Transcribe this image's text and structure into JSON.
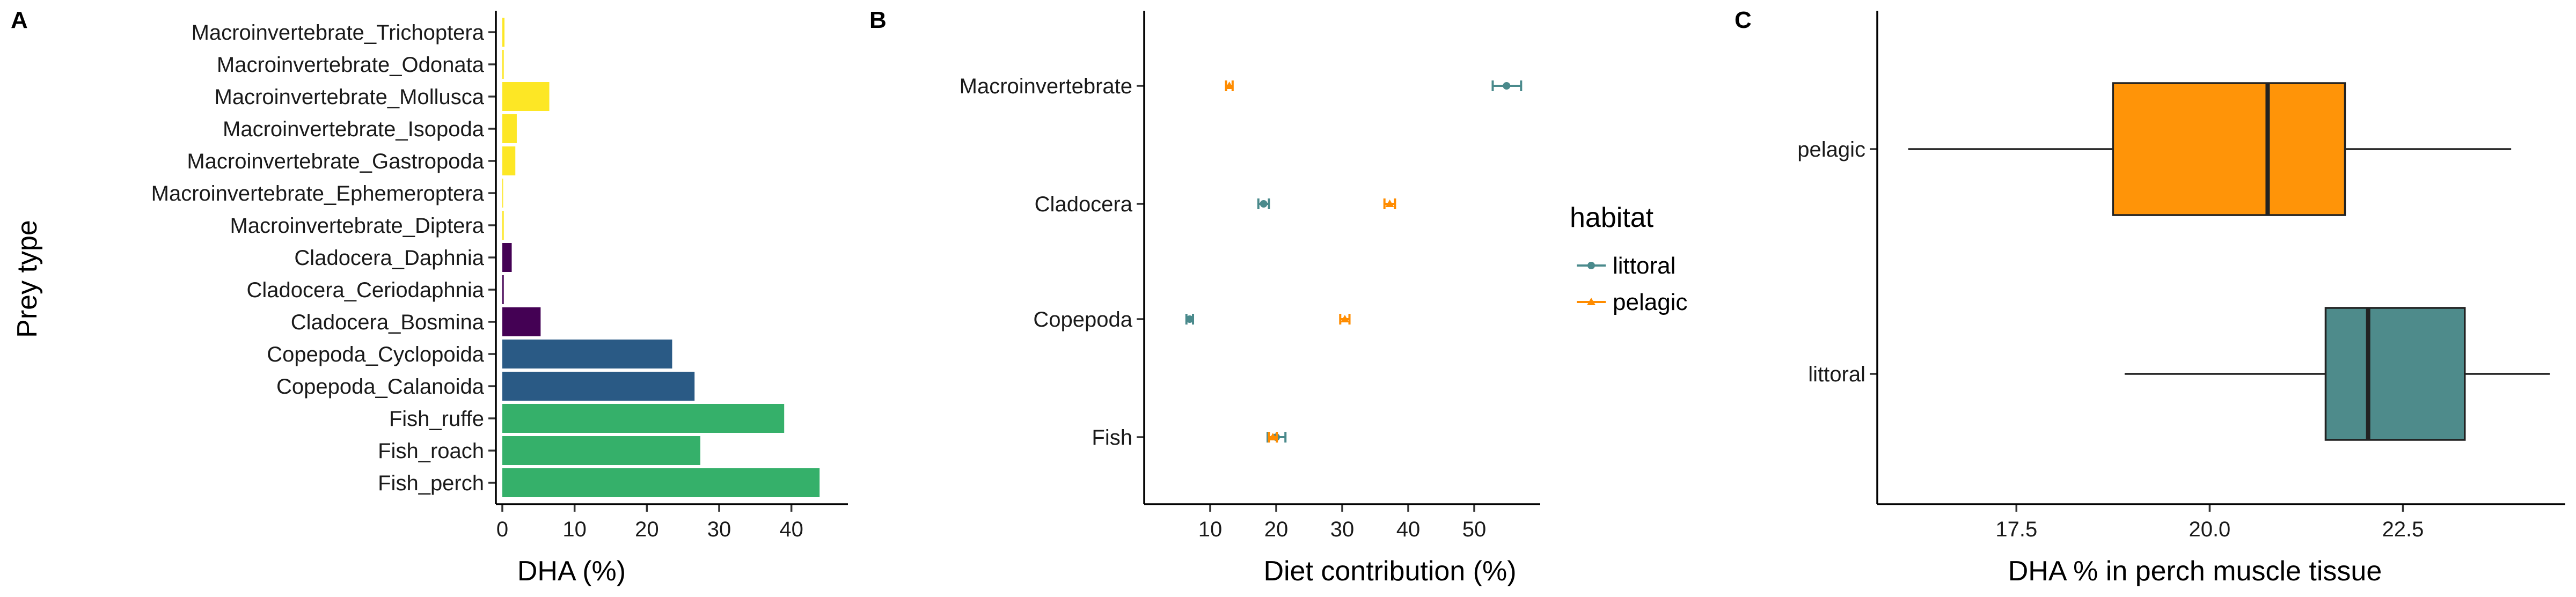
{
  "chart_data": [
    {
      "panel": "A",
      "type": "bar",
      "orientation": "horizontal",
      "xlabel": "DHA (%)",
      "ylabel": "Prey type",
      "xlim": [
        0,
        45
      ],
      "xticks": [
        "0",
        "10",
        "20",
        "30",
        "40"
      ],
      "categories": [
        "Macroinvertebrate_Trichoptera",
        "Macroinvertebrate_Odonata",
        "Macroinvertebrate_Mollusca",
        "Macroinvertebrate_Isopoda",
        "Macroinvertebrate_Gastropoda",
        "Macroinvertebrate_Ephemeroptera",
        "Macroinvertebrate_Diptera",
        "Cladocera_Daphnia",
        "Cladocera_Ceriodaphnia",
        "Cladocera_Bosmina",
        "Copepoda_Cyclopoida",
        "Copepoda_Calanoida",
        "Fish_ruffe",
        "Fish_roach",
        "Fish_perch"
      ],
      "values": [
        0.3,
        0.2,
        6.5,
        2.0,
        1.8,
        0.1,
        0.2,
        1.3,
        0.2,
        5.3,
        23.5,
        26.6,
        39.0,
        27.4,
        43.9
      ],
      "colors": [
        "#fde725",
        "#fde725",
        "#fde725",
        "#fde725",
        "#fde725",
        "#fde725",
        "#fde725",
        "#440154",
        "#440154",
        "#440154",
        "#2a5a85",
        "#2a5a85",
        "#35b06a",
        "#35b06a",
        "#35b06a"
      ],
      "grid": false
    },
    {
      "panel": "B",
      "type": "scatter",
      "subtype": "point-errorbar",
      "xlabel": "Diet contribution (%)",
      "xlim": [
        0,
        60
      ],
      "xticks": [
        "10",
        "20",
        "30",
        "40",
        "50"
      ],
      "categories": [
        "Macroinvertebrate",
        "Cladocera",
        "Copepoda",
        "Fish"
      ],
      "legend": {
        "title": "habitat",
        "position": "right"
      },
      "series": [
        {
          "name": "littoral",
          "color": "#4a8a8c",
          "marker": "circle",
          "values": [
            54.9,
            18.1,
            6.9,
            20.0
          ],
          "lower": [
            52.8,
            17.3,
            6.4,
            18.7
          ],
          "upper": [
            57.1,
            18.9,
            7.4,
            21.4
          ]
        },
        {
          "name": "pelagic",
          "color": "#ff8c00",
          "marker": "triangle",
          "values": [
            12.9,
            37.2,
            30.4,
            19.5
          ],
          "lower": [
            12.4,
            36.4,
            29.7,
            18.9
          ],
          "upper": [
            13.4,
            38.0,
            31.1,
            20.1
          ]
        }
      ],
      "grid": false
    },
    {
      "panel": "C",
      "type": "box",
      "orientation": "horizontal",
      "xlabel": "DHA % in perch muscle tissue",
      "xlim": [
        15.7,
        24.6
      ],
      "xticks": [
        "17.5",
        "20.0",
        "22.5"
      ],
      "categories": [
        "pelagic",
        "littoral"
      ],
      "boxes": [
        {
          "name": "pelagic",
          "min": 16.1,
          "q1": 18.75,
          "median": 20.75,
          "q3": 21.75,
          "max": 23.9,
          "color": "#ff9408"
        },
        {
          "name": "littoral",
          "min": 18.9,
          "q1": 21.5,
          "median": 22.05,
          "q3": 23.3,
          "max": 24.4,
          "color": "#4e8b8b"
        }
      ],
      "grid": false
    }
  ]
}
